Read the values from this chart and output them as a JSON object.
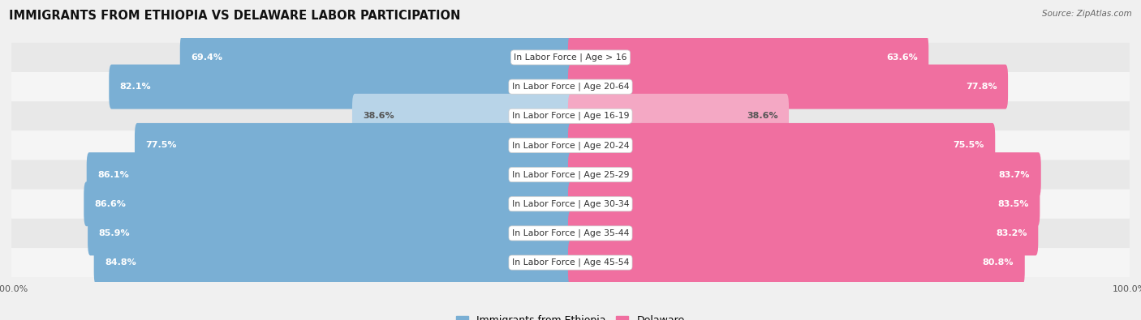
{
  "title": "IMMIGRANTS FROM ETHIOPIA VS DELAWARE LABOR PARTICIPATION",
  "source": "Source: ZipAtlas.com",
  "categories": [
    "In Labor Force | Age > 16",
    "In Labor Force | Age 20-64",
    "In Labor Force | Age 16-19",
    "In Labor Force | Age 20-24",
    "In Labor Force | Age 25-29",
    "In Labor Force | Age 30-34",
    "In Labor Force | Age 35-44",
    "In Labor Force | Age 45-54"
  ],
  "ethiopia_values": [
    69.4,
    82.1,
    38.6,
    77.5,
    86.1,
    86.6,
    85.9,
    84.8
  ],
  "delaware_values": [
    63.6,
    77.8,
    38.6,
    75.5,
    83.7,
    83.5,
    83.2,
    80.8
  ],
  "ethiopia_color_strong": "#7aafd4",
  "ethiopia_color_light": "#b8d4e8",
  "delaware_color_strong": "#f06fa0",
  "delaware_color_light": "#f4a8c4",
  "max_value": 100.0,
  "background_color": "#f0f0f0",
  "row_bg_even": "#e8e8e8",
  "row_bg_odd": "#f5f5f5",
  "title_fontsize": 10.5,
  "legend_fontsize": 9,
  "bar_fontsize": 8.0,
  "cat_fontsize": 7.8
}
